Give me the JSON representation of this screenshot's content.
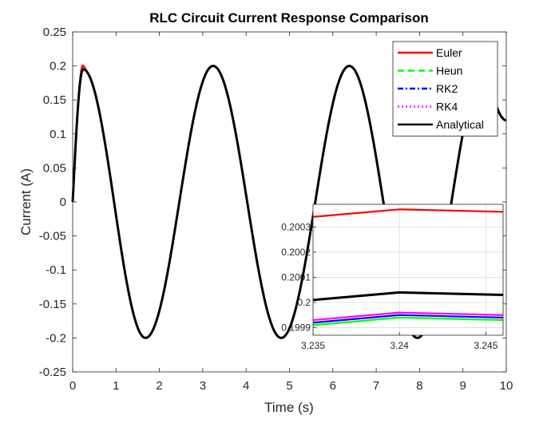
{
  "chart_data": [
    {
      "type": "line",
      "title": "RLC Circuit Current Response Comparison",
      "xlabel": "Time (s)",
      "ylabel": "Current (A)",
      "xlim": [
        0,
        10
      ],
      "ylim": [
        -0.25,
        0.25
      ],
      "xticks": [
        "0",
        "1",
        "2",
        "3",
        "4",
        "5",
        "6",
        "7",
        "8",
        "9",
        "10"
      ],
      "yticks": [
        "-0.25",
        "-0.2",
        "-0.15",
        "-0.1",
        "-0.05",
        "0",
        "0.05",
        "0.1",
        "0.15",
        "0.2",
        "0.25"
      ],
      "grid": false,
      "legend_position": "top-right",
      "series": [
        {
          "name": "Euler",
          "color": "#ff0000",
          "style": "solid",
          "peak_time": 0.23,
          "peak_value": 0.2003
        },
        {
          "name": "Heun",
          "color": "#00ff00",
          "style": "dashed",
          "peak_time": 0.24,
          "peak_value": 0.1999
        },
        {
          "name": "RK2",
          "color": "#0000ff",
          "style": "dashdot",
          "peak_time": 0.24,
          "peak_value": 0.1999
        },
        {
          "name": "RK4",
          "color": "#ff00ff",
          "style": "dotted",
          "peak_time": 0.24,
          "peak_value": 0.2
        },
        {
          "name": "Analytical",
          "color": "#000000",
          "style": "solid",
          "amplitude": 0.2,
          "period": 3.14,
          "first_peak_time": 0.24,
          "first_peak_value": 0.195
        }
      ],
      "curve_points": {
        "x": [
          0,
          0.24,
          1.68,
          3.24,
          4.81,
          6.38,
          7.95,
          9.52,
          10
        ],
        "y": [
          0,
          0.195,
          -0.2,
          0.2,
          -0.2,
          0.2,
          -0.2,
          0.2,
          0.12
        ]
      }
    },
    {
      "type": "line",
      "role": "inset",
      "xlim": [
        3.235,
        3.246
      ],
      "ylim": [
        0.19987,
        0.20039
      ],
      "xticks": [
        "3.235",
        "3.24",
        "3.245"
      ],
      "yticks": [
        "0.1999",
        "0.2",
        "0.2001",
        "0.2002",
        "0.2003"
      ],
      "grid": true,
      "x": [
        3.235,
        3.24,
        3.246
      ],
      "series": [
        {
          "name": "Euler",
          "color": "#ff0000",
          "values": [
            0.20034,
            0.20037,
            0.20036
          ]
        },
        {
          "name": "Analytical",
          "color": "#000000",
          "values": [
            0.20001,
            0.20004,
            0.20003
          ]
        },
        {
          "name": "RK4",
          "color": "#ff00ff",
          "values": [
            0.19993,
            0.19996,
            0.19995
          ]
        },
        {
          "name": "RK2",
          "color": "#0000ff",
          "values": [
            0.19992,
            0.19995,
            0.19994
          ]
        },
        {
          "name": "Heun",
          "color": "#00ff00",
          "values": [
            0.19991,
            0.19994,
            0.19993
          ]
        }
      ]
    }
  ]
}
